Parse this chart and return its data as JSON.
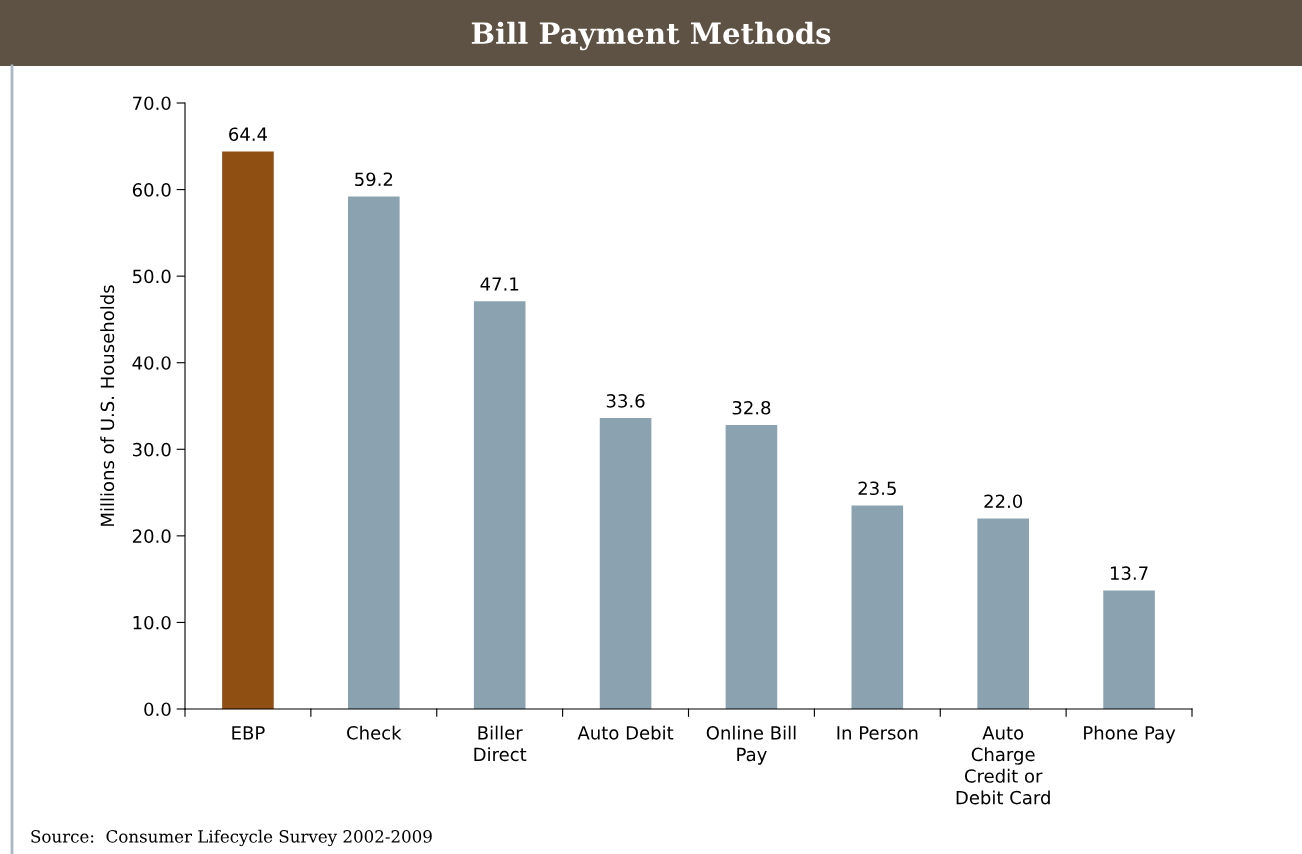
{
  "chart_data": {
    "type": "bar",
    "title": "Bill Payment Methods",
    "categories": [
      "EBP",
      "Check",
      "Biller\nDirect",
      "Auto Debit",
      "Online Bill\nPay",
      "In Person",
      "Auto\nCharge\nCredit or\nDebit Card",
      "Phone Pay"
    ],
    "values": [
      64.4,
      59.2,
      47.1,
      33.6,
      32.8,
      23.5,
      22.0,
      13.7
    ],
    "colors": [
      "#8f4f12",
      "#8ba3b0",
      "#8ba3b0",
      "#8ba3b0",
      "#8ba3b0",
      "#8ba3b0",
      "#8ba3b0",
      "#8ba3b0"
    ],
    "ylabel": "Millions of U.S. Households",
    "ylim": [
      0,
      70
    ],
    "yticks": [
      {
        "value": 0,
        "label": "0.0"
      },
      {
        "value": 10,
        "label": "10.0"
      },
      {
        "value": 20,
        "label": "20.0"
      },
      {
        "value": 30,
        "label": "30.0"
      },
      {
        "value": 40,
        "label": "40.0"
      },
      {
        "value": 50,
        "label": "50.0"
      },
      {
        "value": 60,
        "label": "60.0"
      },
      {
        "value": 70,
        "label": "70.0"
      }
    ],
    "value_labels": [
      "64.4",
      "59.2",
      "47.1",
      "33.6",
      "32.8",
      "23.5",
      "22.0",
      "13.7"
    ],
    "grid": false,
    "legend": false,
    "annotations": [
      "Source:  Consumer Lifecycle Survey 2002-2009"
    ]
  }
}
